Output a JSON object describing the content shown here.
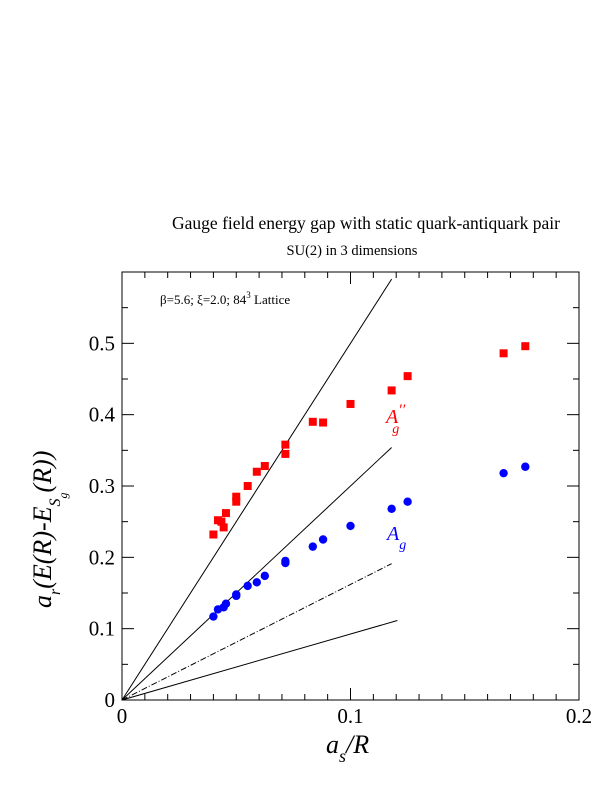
{
  "chart_data": {
    "type": "scatter",
    "title": "Gauge field energy gap with static quark-antiquark pair",
    "subtitle": "SU(2) in 3 dimensions",
    "annotation": {
      "prefix": "β=5.6;  ξ=2.0; 84",
      "sup": "3",
      "suffix": " Lattice"
    },
    "xlabel": {
      "main": "a",
      "sub": "s",
      "rest": "/R"
    },
    "ylabel": {
      "pre": "a",
      "pre_sub": "r",
      "mid": "(E(R)-E",
      "sub": "S",
      "subsub": "g",
      "post": "(R))"
    },
    "xlim": [
      0,
      0.2
    ],
    "ylim": [
      0,
      0.6
    ],
    "x_ticks": [
      "0",
      "0.1",
      "0.2"
    ],
    "y_ticks": [
      "0",
      "0.1",
      "0.2",
      "0.3",
      "0.4",
      "0.5"
    ],
    "series": [
      {
        "name": "A''g",
        "label_main": "A",
        "label_sup": "′′",
        "label_sub": "g",
        "color": "#ff0000",
        "marker": "square",
        "points": [
          [
            0.04,
            0.232
          ],
          [
            0.042,
            0.252
          ],
          [
            0.0435,
            0.25
          ],
          [
            0.0445,
            0.242
          ],
          [
            0.0455,
            0.262
          ],
          [
            0.05,
            0.278
          ],
          [
            0.05,
            0.285
          ],
          [
            0.055,
            0.3
          ],
          [
            0.059,
            0.32
          ],
          [
            0.0625,
            0.328
          ],
          [
            0.0715,
            0.345
          ],
          [
            0.0715,
            0.358
          ],
          [
            0.0835,
            0.39
          ],
          [
            0.088,
            0.389
          ],
          [
            0.1,
            0.415
          ],
          [
            0.118,
            0.434
          ],
          [
            0.125,
            0.454
          ],
          [
            0.167,
            0.486
          ],
          [
            0.1765,
            0.496
          ]
        ]
      },
      {
        "name": "Ag",
        "label_main": "A",
        "label_sub": "g",
        "color": "#0000ff",
        "marker": "circle",
        "points": [
          [
            0.04,
            0.117
          ],
          [
            0.042,
            0.127
          ],
          [
            0.0445,
            0.13
          ],
          [
            0.0455,
            0.135
          ],
          [
            0.05,
            0.146
          ],
          [
            0.05,
            0.148
          ],
          [
            0.055,
            0.16
          ],
          [
            0.059,
            0.165
          ],
          [
            0.0625,
            0.174
          ],
          [
            0.0715,
            0.192
          ],
          [
            0.0715,
            0.195
          ],
          [
            0.0835,
            0.215
          ],
          [
            0.088,
            0.225
          ],
          [
            0.1,
            0.244
          ],
          [
            0.118,
            0.268
          ],
          [
            0.125,
            0.278
          ],
          [
            0.167,
            0.318
          ],
          [
            0.1765,
            0.327
          ]
        ]
      }
    ],
    "reference_lines": [
      {
        "slope": 5.0,
        "x_end": 0.118,
        "style": "solid"
      },
      {
        "slope": 3.0,
        "x_end": 0.118,
        "style": "solid"
      },
      {
        "slope": 1.62,
        "x_end": 0.118,
        "style": "dashdot"
      },
      {
        "slope": 0.925,
        "x_end": 0.1205,
        "style": "solid"
      }
    ],
    "grid": false,
    "legend": "none"
  }
}
